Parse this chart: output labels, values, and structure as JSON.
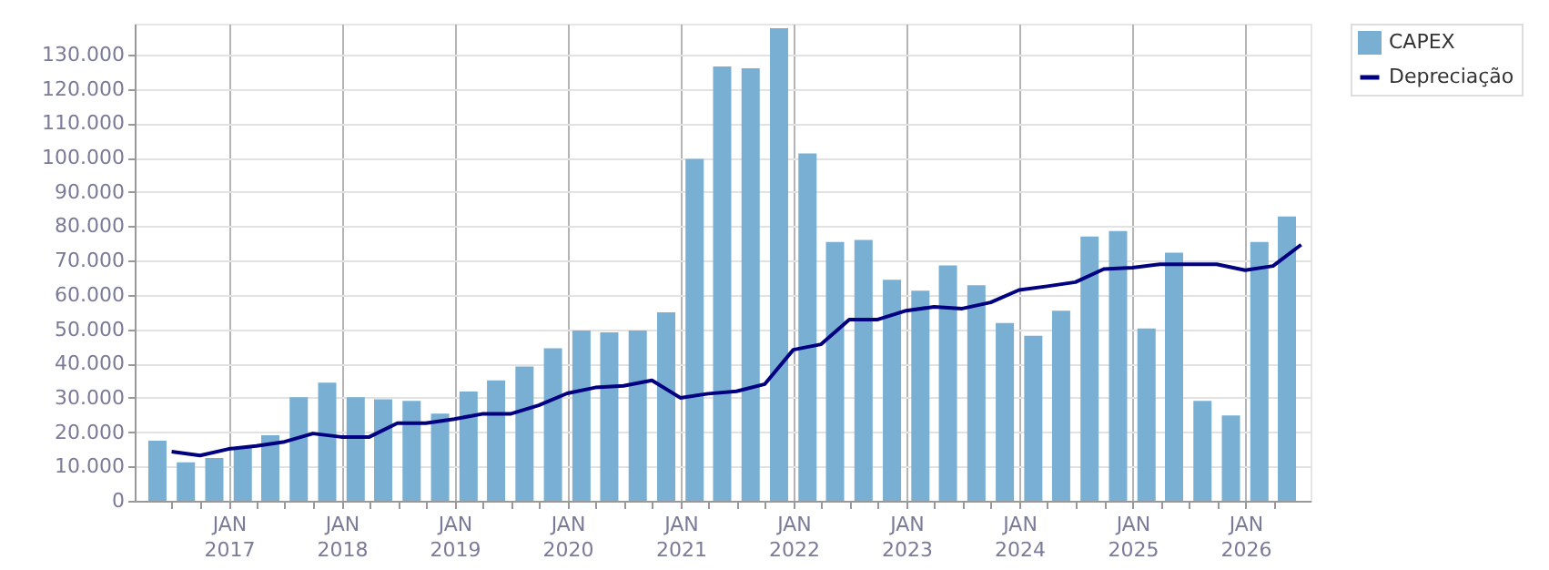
{
  "chart_data": {
    "type": "bar",
    "legend": "top right",
    "grid": true,
    "xlim": [
      "2016-04-01",
      "2026-07-01"
    ],
    "xticks": [
      {
        "value": "2016-07-01",
        "label": null
      },
      {
        "value": "2016-10-01",
        "label": null
      },
      {
        "value": "2017-01-01",
        "label": "JAN\n2017"
      },
      {
        "value": "2017-04-01",
        "label": null
      },
      {
        "value": "2017-07-01",
        "label": null
      },
      {
        "value": "2017-10-01",
        "label": null
      },
      {
        "value": "2018-01-01",
        "label": "JAN\n2018"
      },
      {
        "value": "2018-04-01",
        "label": null
      },
      {
        "value": "2018-07-01",
        "label": null
      },
      {
        "value": "2018-10-01",
        "label": null
      },
      {
        "value": "2019-01-01",
        "label": "JAN\n2019"
      },
      {
        "value": "2019-04-01",
        "label": null
      },
      {
        "value": "2019-07-01",
        "label": null
      },
      {
        "value": "2019-10-01",
        "label": null
      },
      {
        "value": "2020-01-01",
        "label": "JAN\n2020"
      },
      {
        "value": "2020-04-01",
        "label": null
      },
      {
        "value": "2020-07-01",
        "label": null
      },
      {
        "value": "2020-10-01",
        "label": null
      },
      {
        "value": "2021-01-01",
        "label": "JAN\n2021"
      },
      {
        "value": "2021-04-01",
        "label": null
      },
      {
        "value": "2021-07-01",
        "label": null
      },
      {
        "value": "2021-10-01",
        "label": null
      },
      {
        "value": "2022-01-01",
        "label": "JAN\n2022"
      },
      {
        "value": "2022-04-01",
        "label": null
      },
      {
        "value": "2022-07-01",
        "label": null
      },
      {
        "value": "2022-10-01",
        "label": null
      },
      {
        "value": "2023-01-01",
        "label": "JAN\n2023"
      },
      {
        "value": "2023-04-01",
        "label": null
      },
      {
        "value": "2023-07-01",
        "label": null
      },
      {
        "value": "2023-10-01",
        "label": null
      },
      {
        "value": "2024-01-01",
        "label": "JAN\n2024"
      },
      {
        "value": "2024-04-01",
        "label": null
      },
      {
        "value": "2024-07-01",
        "label": null
      },
      {
        "value": "2024-10-01",
        "label": null
      },
      {
        "value": "2025-01-01",
        "label": "JAN\n2025"
      },
      {
        "value": "2025-04-01",
        "label": null
      },
      {
        "value": "2025-07-01",
        "label": null
      },
      {
        "value": "2025-10-01",
        "label": null
      },
      {
        "value": "2026-01-01",
        "label": "JAN\n2026"
      },
      {
        "value": "2026-04-01",
        "label": null
      }
    ],
    "ylim": [
      0,
      139000
    ],
    "yticks": [
      {
        "value": 0,
        "label": "0"
      },
      {
        "value": 10000,
        "label": "10.000"
      },
      {
        "value": 20000,
        "label": "20.000"
      },
      {
        "value": 30000,
        "label": "30.000"
      },
      {
        "value": 40000,
        "label": "40.000"
      },
      {
        "value": 50000,
        "label": "50.000"
      },
      {
        "value": 60000,
        "label": "60.000"
      },
      {
        "value": 70000,
        "label": "70.000"
      },
      {
        "value": 80000,
        "label": "80.000"
      },
      {
        "value": 90000,
        "label": "90.000"
      },
      {
        "value": 100000,
        "label": "100.000"
      },
      {
        "value": 110000,
        "label": "110.000"
      },
      {
        "value": 120000,
        "label": "120.000"
      },
      {
        "value": 130000,
        "label": "130.000"
      }
    ],
    "series": [
      {
        "name": "CAPEX",
        "color": "#78afd3",
        "x": [
          "2016-05-15",
          "2016-08-15",
          "2016-11-15",
          "2017-02-15",
          "2017-05-15",
          "2017-08-15",
          "2017-11-15",
          "2018-02-15",
          "2018-05-15",
          "2018-08-15",
          "2018-11-15",
          "2019-02-15",
          "2019-05-15",
          "2019-08-15",
          "2019-11-15",
          "2020-02-15",
          "2020-05-15",
          "2020-08-15",
          "2020-11-15",
          "2021-02-15",
          "2021-05-15",
          "2021-08-15",
          "2021-11-15",
          "2022-02-15",
          "2022-05-15",
          "2022-08-15",
          "2022-11-15",
          "2023-02-15",
          "2023-05-15",
          "2023-08-15",
          "2023-11-15",
          "2024-02-15",
          "2024-05-15",
          "2024-08-15",
          "2024-11-15",
          "2025-02-15",
          "2025-05-15",
          "2025-08-15",
          "2025-11-15",
          "2026-02-15",
          "2026-05-15"
        ],
        "values": [
          17500,
          11200,
          12500,
          15500,
          19100,
          30200,
          34400,
          30200,
          29600,
          29100,
          25400,
          31800,
          35100,
          39100,
          44400,
          49600,
          49100,
          49600,
          54900,
          99600,
          126500,
          126000,
          137700,
          101200,
          75400,
          76000,
          64400,
          61200,
          68600,
          62800,
          51800,
          48100,
          55400,
          77000,
          78600,
          50200,
          72300,
          29100,
          24900,
          75400,
          82800
        ]
      },
      {
        "name": "Depreciação",
        "type": "line",
        "color": "#000080",
        "x": [
          "2016-06-30",
          "2016-09-30",
          "2016-12-31",
          "2017-03-31",
          "2017-06-30",
          "2017-09-30",
          "2017-12-31",
          "2018-03-31",
          "2018-06-30",
          "2018-09-30",
          "2018-12-31",
          "2019-03-31",
          "2019-06-30",
          "2019-09-30",
          "2019-12-31",
          "2020-03-31",
          "2020-06-30",
          "2020-09-30",
          "2020-12-31",
          "2021-03-31",
          "2021-06-30",
          "2021-09-30",
          "2021-12-31",
          "2022-03-31",
          "2022-06-30",
          "2022-09-30",
          "2022-12-31",
          "2023-03-31",
          "2023-06-30",
          "2023-09-30",
          "2023-12-31",
          "2024-03-31",
          "2024-06-30",
          "2024-09-30",
          "2024-12-31",
          "2025-03-31",
          "2025-06-30",
          "2025-09-30",
          "2025-12-31",
          "2026-03-31",
          "2026-06-30"
        ],
        "values": [
          14300,
          13200,
          15100,
          16000,
          17200,
          19600,
          18600,
          18600,
          22600,
          22600,
          23800,
          25300,
          25300,
          27800,
          31300,
          33000,
          33500,
          35100,
          30000,
          31200,
          31900,
          34000,
          44000,
          45600,
          52800,
          52800,
          55400,
          56500,
          56000,
          57800,
          61400,
          62500,
          63700,
          67500,
          67900,
          68900,
          68900,
          68900,
          67200,
          68400,
          74600
        ]
      }
    ]
  }
}
